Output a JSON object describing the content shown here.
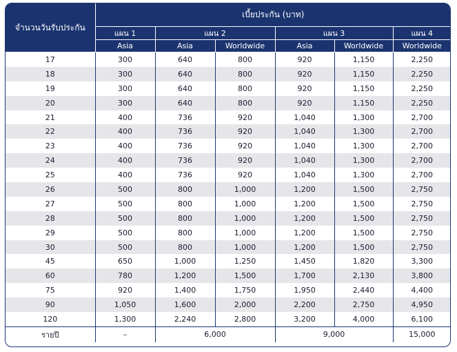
{
  "header": {
    "row_label": "จำนวนวันรับประกัน",
    "premium_label": "เบี้ยประกัน (บาท)",
    "plans": [
      "แผน 1",
      "แผน 2",
      "แผน 3",
      "แผน 4"
    ],
    "zones": [
      "Asia",
      "Asia",
      "Worldwide",
      "Asia",
      "Worldwide",
      "Worldwide"
    ]
  },
  "rows": [
    [
      "17",
      "300",
      "640",
      "800",
      "920",
      "1,150",
      "2,250"
    ],
    [
      "18",
      "300",
      "640",
      "800",
      "920",
      "1,150",
      "2,250"
    ],
    [
      "19",
      "300",
      "640",
      "800",
      "920",
      "1,150",
      "2,250"
    ],
    [
      "20",
      "300",
      "640",
      "800",
      "920",
      "1,150",
      "2,250"
    ],
    [
      "21",
      "400",
      "736",
      "920",
      "1,040",
      "1,300",
      "2,700"
    ],
    [
      "22",
      "400",
      "736",
      "920",
      "1,040",
      "1,300",
      "2,700"
    ],
    [
      "23",
      "400",
      "736",
      "920",
      "1,040",
      "1,300",
      "2,700"
    ],
    [
      "24",
      "400",
      "736",
      "920",
      "1,040",
      "1,300",
      "2,700"
    ],
    [
      "25",
      "400",
      "736",
      "920",
      "1,040",
      "1,300",
      "2,700"
    ],
    [
      "26",
      "500",
      "800",
      "1,000",
      "1,200",
      "1,500",
      "2,750"
    ],
    [
      "27",
      "500",
      "800",
      "1,000",
      "1,200",
      "1,500",
      "2,750"
    ],
    [
      "28",
      "500",
      "800",
      "1,000",
      "1,200",
      "1,500",
      "2,750"
    ],
    [
      "29",
      "500",
      "800",
      "1,000",
      "1,200",
      "1,500",
      "2,750"
    ],
    [
      "30",
      "500",
      "800",
      "1,000",
      "1,200",
      "1,500",
      "2,750"
    ],
    [
      "45",
      "650",
      "1,000",
      "1,250",
      "1,450",
      "1,820",
      "3,300"
    ],
    [
      "60",
      "780",
      "1,200",
      "1,500",
      "1,700",
      "2,130",
      "3,800"
    ],
    [
      "75",
      "920",
      "1,400",
      "1,750",
      "1,950",
      "2,440",
      "4,400"
    ],
    [
      "90",
      "1,050",
      "1,600",
      "2,000",
      "2,200",
      "2,750",
      "4,950"
    ],
    [
      "120",
      "1,300",
      "2,240",
      "2,800",
      "3,200",
      "4,000",
      "6,100"
    ]
  ],
  "annual": {
    "label": "รายปี",
    "plan1": "–",
    "plan2": "6,000",
    "plan3": "9,000",
    "plan4": "15,000"
  }
}
